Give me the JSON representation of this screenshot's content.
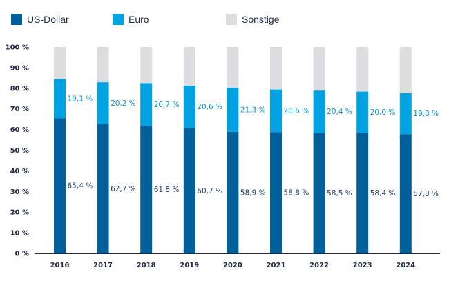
{
  "chart_data": {
    "type": "bar",
    "stacked": true,
    "title": "",
    "xlabel": "",
    "ylabel": "",
    "ylim": [
      0,
      100
    ],
    "yticks": [
      0,
      10,
      20,
      30,
      40,
      50,
      60,
      70,
      80,
      90,
      100
    ],
    "ytick_labels": [
      "0 %",
      "10 %",
      "20 %",
      "30 %",
      "40 %",
      "50 %",
      "60 %",
      "70 %",
      "80 %",
      "90 %",
      "100 %"
    ],
    "categories": [
      "2016",
      "2017",
      "2018",
      "2019",
      "2020",
      "2021",
      "2022",
      "2023",
      "2024"
    ],
    "legend_position": "top-left",
    "series": [
      {
        "name": "US-Dollar",
        "color": "#00609a",
        "label_color": "#1f3f64",
        "values": [
          65.4,
          62.7,
          61.8,
          60.7,
          58.9,
          58.8,
          58.5,
          58.4,
          57.8
        ],
        "labels": [
          "65,4 %",
          "62,7 %",
          "61,8 %",
          "60,7 %",
          "58,9 %",
          "58,8 %",
          "58,5 %",
          "58,4 %",
          "57,8 %"
        ]
      },
      {
        "name": "Euro",
        "color": "#00a2e1",
        "label_color": "#0096d6",
        "values": [
          19.1,
          20.2,
          20.7,
          20.6,
          21.3,
          20.6,
          20.4,
          20.0,
          19.8
        ],
        "labels": [
          "19,1 %",
          "20,2 %",
          "20,7 %",
          "20,6 %",
          "21,3 %",
          "20,6 %",
          "20,4 %",
          "20,0 %",
          "19,8 %"
        ]
      },
      {
        "name": "Sonstige",
        "color": "#dcdde0",
        "values": [
          15.5,
          17.1,
          17.5,
          18.7,
          19.8,
          20.6,
          21.1,
          21.6,
          22.4
        ],
        "labels": []
      }
    ]
  },
  "colors": {
    "axis": "#1f2a44",
    "text": "#1f2a44"
  }
}
